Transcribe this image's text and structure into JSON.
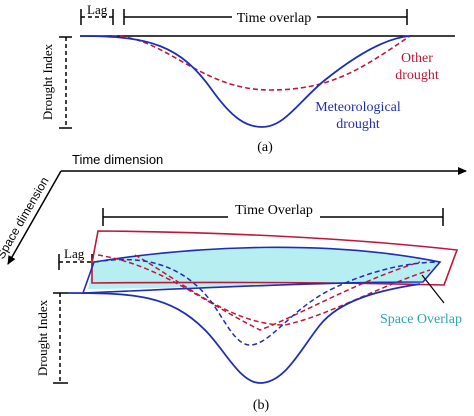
{
  "panel_a": {
    "lag_label": "Lag",
    "time_overlap_label": "Time overlap",
    "y_axis_label": "Drought Index",
    "other_drought_line1": "Other",
    "other_drought_line2": "drought",
    "meteorological_line1": "Meteorological",
    "meteorological_line2": "drought",
    "caption": "(a)"
  },
  "panel_b": {
    "time_dimension_label": "Time dimension",
    "space_dimension_label": "Space dimension",
    "time_overlap_label": "Time Overlap",
    "lag_label": "Lag",
    "y_axis_label": "Drought Index",
    "space_overlap_label": "Space Overlap",
    "caption": "(b)"
  },
  "colors": {
    "meteorological": "#1f2fb5",
    "other": "#c0163a",
    "overlap_fill": "#b7eef2",
    "space_overlap_text": "#2aa6b0",
    "black": "#000000"
  }
}
